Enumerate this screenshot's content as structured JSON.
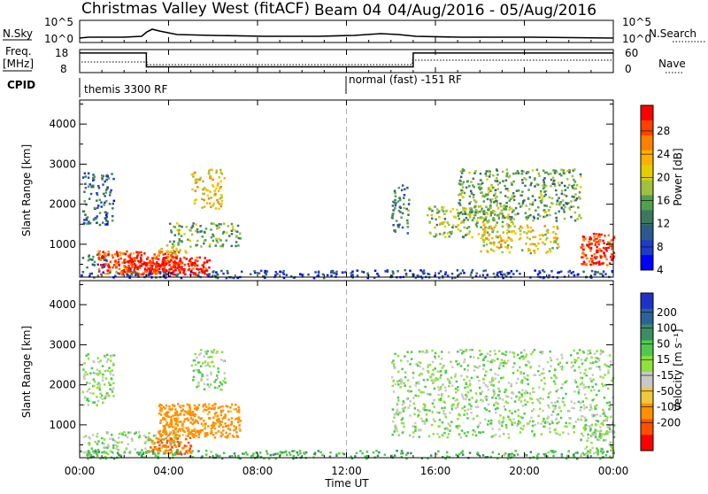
{
  "header": {
    "title": "Christmas Valley West (fitACF)",
    "beam": "Beam 04",
    "date_range": "04/Aug/2016 - 05/Aug/2016"
  },
  "top_panels": {
    "nsky_label": "N.Sky",
    "nsky_ticks": [
      "10^5",
      "10^0"
    ],
    "nsearch_label": "N.Search",
    "freq_label_1": "Freq.",
    "freq_label_2": "[MHz]",
    "freq_ticks": [
      "18",
      "8"
    ],
    "nave_ticks": [
      "60",
      "0"
    ],
    "nave_label": "Nave",
    "cpid_label": "CPID",
    "cpid_segments": [
      {
        "label": "themis 3300 RF",
        "start_hour": 0,
        "end_hour": 12
      },
      {
        "label": "normal (fast) -151 RF",
        "start_hour": 12,
        "end_hour": 24
      }
    ],
    "freq_steps": [
      {
        "start_hour": 0,
        "end_hour": 3,
        "mhz": 16.5
      },
      {
        "start_hour": 3,
        "end_hour": 15,
        "mhz": 10.5
      },
      {
        "start_hour": 15,
        "end_hour": 24,
        "mhz": 16.5
      }
    ]
  },
  "power_colorbar": {
    "label": "Power [dB]",
    "ticks": [
      "28",
      "24",
      "20",
      "16",
      "12",
      "8",
      "4"
    ],
    "colors": [
      "#ff0000",
      "#ff4000",
      "#ff8000",
      "#ffb000",
      "#e0d000",
      "#a0c040",
      "#50a050",
      "#3c7860",
      "#2d5a8c",
      "#1e3cc8",
      "#0000ff"
    ]
  },
  "velocity_colorbar": {
    "label": "Velocity [m s⁻¹]",
    "ticks": [
      "200",
      "100",
      "50",
      "15",
      "-15",
      "-50",
      "-100",
      "-200"
    ],
    "colors": [
      "#1e32c8",
      "#2a6496",
      "#3c8c64",
      "#50c850",
      "#90e040",
      "#c8c8c8",
      "#f0c840",
      "#ff9000",
      "#ff5000",
      "#ff0000"
    ]
  },
  "chart_data": {
    "type": "heatmap",
    "x_axis": {
      "label": "Time UT",
      "ticks": [
        "00:00",
        "04:00",
        "08:00",
        "12:00",
        "16:00",
        "20:00",
        "00:00"
      ],
      "range_hours": [
        0,
        24
      ]
    },
    "y_axis": {
      "label": "Slant Range [km]",
      "ticks": [
        "1000",
        "2000",
        "3000",
        "4000"
      ],
      "range_km": [
        180,
        4600
      ]
    },
    "marker_hour": 12,
    "power_clusters": [
      {
        "t0": 0.1,
        "t1": 1.2,
        "r0": 400,
        "r1": 800,
        "v": 9
      },
      {
        "t0": 0.8,
        "t1": 4.5,
        "r0": 250,
        "r1": 850,
        "v": 27
      },
      {
        "t0": 2.0,
        "t1": 5.8,
        "r0": 250,
        "r1": 700,
        "v": 30
      },
      {
        "t0": 3.5,
        "t1": 5.0,
        "r0": 800,
        "r1": 1000,
        "v": 18
      },
      {
        "t0": 4.0,
        "t1": 7.2,
        "r0": 950,
        "r1": 1550,
        "v": 14
      },
      {
        "t0": 5.0,
        "t1": 6.5,
        "r0": 1900,
        "r1": 2900,
        "v": 20
      },
      {
        "t0": 0.1,
        "t1": 1.5,
        "r0": 1500,
        "r1": 2800,
        "v": 8
      },
      {
        "t0": 0.0,
        "t1": 24.0,
        "r0": 180,
        "r1": 380,
        "v": 6
      },
      {
        "t0": 14.0,
        "t1": 14.8,
        "r0": 1300,
        "r1": 2500,
        "v": 10
      },
      {
        "t0": 15.5,
        "t1": 19.5,
        "r0": 1200,
        "r1": 2000,
        "v": 16
      },
      {
        "t0": 17.0,
        "t1": 22.5,
        "r0": 1600,
        "r1": 2900,
        "v": 13
      },
      {
        "t0": 18.0,
        "t1": 21.5,
        "r0": 800,
        "r1": 1500,
        "v": 19
      },
      {
        "t0": 22.5,
        "t1": 24.0,
        "r0": 500,
        "r1": 1300,
        "v": 28
      }
    ],
    "velocity_clusters": [
      {
        "t0": 0.1,
        "t1": 4.5,
        "r0": 300,
        "r1": 850,
        "v": 0
      },
      {
        "t0": 3.5,
        "t1": 7.2,
        "r0": 700,
        "r1": 1550,
        "v": -90
      },
      {
        "t0": 3.0,
        "t1": 5.0,
        "r0": 300,
        "r1": 700,
        "v": -150
      },
      {
        "t0": 5.0,
        "t1": 6.5,
        "r0": 1900,
        "r1": 2900,
        "v": 0
      },
      {
        "t0": 0.1,
        "t1": 1.5,
        "r0": 1500,
        "r1": 2800,
        "v": 0
      },
      {
        "t0": 0.0,
        "t1": 24.0,
        "r0": 180,
        "r1": 380,
        "v": 25
      },
      {
        "t0": 14.0,
        "t1": 24.0,
        "r0": 700,
        "r1": 2900,
        "v": 0
      },
      {
        "t0": 22.5,
        "t1": 24.0,
        "r0": 300,
        "r1": 1300,
        "v": 0
      }
    ]
  }
}
